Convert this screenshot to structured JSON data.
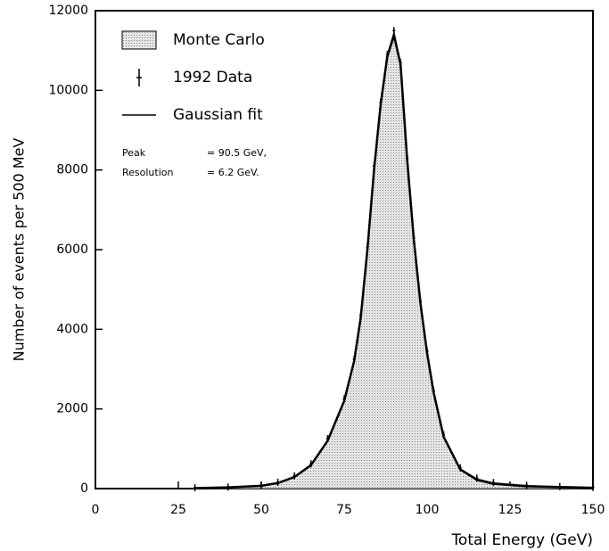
{
  "chart_data": {
    "type": "distribution",
    "xlabel": "Total Energy (GeV)",
    "ylabel": "Number of events per 500 MeV",
    "x": [
      30,
      40,
      50,
      55,
      60,
      65,
      70,
      75,
      78,
      80,
      82,
      84,
      86,
      88,
      90,
      92,
      94,
      96,
      98,
      100,
      102,
      105,
      110,
      115,
      120,
      130,
      140,
      150
    ],
    "series": [
      {
        "name": "Monte Carlo",
        "kind": "area",
        "color": "#c8c8c8",
        "values": [
          20,
          40,
          80,
          150,
          300,
          600,
          1200,
          2200,
          3200,
          4300,
          6000,
          8000,
          9600,
          10800,
          11300,
          10600,
          8200,
          6200,
          4600,
          3400,
          2400,
          1300,
          500,
          250,
          150,
          80,
          50,
          30
        ]
      },
      {
        "name": "1992 Data",
        "kind": "points",
        "color": "#000000",
        "values": [
          20,
          40,
          90,
          160,
          320,
          620,
          1250,
          2250,
          3250,
          4350,
          6050,
          8100,
          9700,
          10900,
          11500,
          10700,
          8300,
          6300,
          4700,
          3450,
          2450,
          1350,
          520,
          260,
          150,
          80,
          50,
          30
        ]
      },
      {
        "name": "Gaussian fit",
        "kind": "line",
        "color": "#000000",
        "values": [
          10,
          30,
          70,
          140,
          290,
          590,
          1200,
          2200,
          3200,
          4300,
          6000,
          8000,
          9650,
          10850,
          11400,
          10650,
          8250,
          6250,
          4650,
          3400,
          2400,
          1300,
          480,
          220,
          120,
          60,
          40,
          20
        ]
      }
    ],
    "annotations": [
      "Peak",
      "= 90.5 GeV,",
      "Resolution",
      "= 6.2 GeV."
    ],
    "xlim": [
      0,
      150
    ],
    "xticks": [
      0,
      25,
      50,
      75,
      100,
      125,
      150
    ],
    "ylim": [
      0,
      12000
    ],
    "yticks": [
      0,
      2000,
      4000,
      6000,
      8000,
      10000,
      12000
    ],
    "legend": "upper left"
  }
}
